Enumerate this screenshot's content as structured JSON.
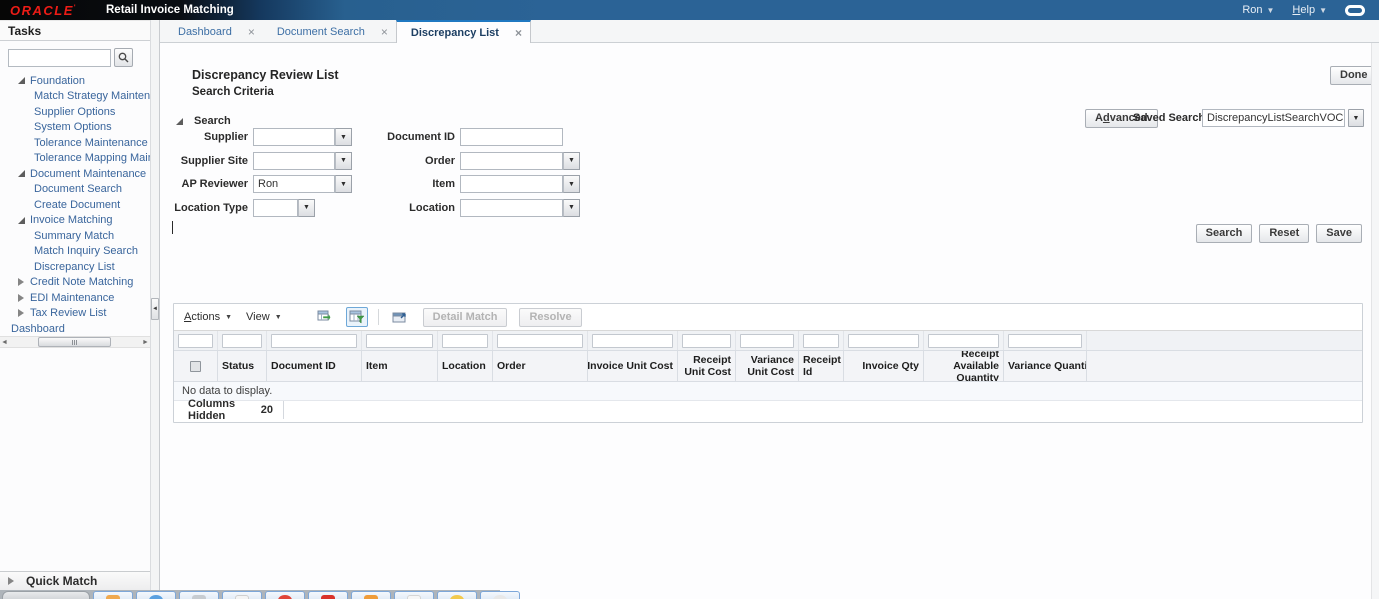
{
  "banner": {
    "logo": "ORACLE",
    "app_title": "Retail Invoice Matching",
    "user_menu": "Ron",
    "help_menu": {
      "text": "Help",
      "u": 0
    }
  },
  "tabs": [
    {
      "label": "Dashboard",
      "active": false
    },
    {
      "label": "Document Search",
      "active": false
    },
    {
      "label": "Discrepancy List",
      "active": true
    }
  ],
  "sidebar": {
    "title": "Tasks",
    "search_value": "",
    "tree": [
      {
        "label": "Foundation",
        "level": 1,
        "state": "expanded"
      },
      {
        "label": "Match Strategy Maintenance",
        "level": 2,
        "state": "leaf"
      },
      {
        "label": "Supplier Options",
        "level": 2,
        "state": "leaf"
      },
      {
        "label": "System Options",
        "level": 2,
        "state": "leaf"
      },
      {
        "label": "Tolerance Maintenance",
        "level": 2,
        "state": "leaf"
      },
      {
        "label": "Tolerance Mapping Maintenance",
        "level": 2,
        "state": "leaf"
      },
      {
        "label": "Document Maintenance",
        "level": 1,
        "state": "expanded"
      },
      {
        "label": "Document Search",
        "level": 2,
        "state": "leaf"
      },
      {
        "label": "Create Document",
        "level": 2,
        "state": "leaf"
      },
      {
        "label": "Invoice Matching",
        "level": 1,
        "state": "expanded"
      },
      {
        "label": "Summary Match",
        "level": 2,
        "state": "leaf"
      },
      {
        "label": "Match Inquiry Search",
        "level": 2,
        "state": "leaf"
      },
      {
        "label": "Discrepancy List",
        "level": 2,
        "state": "leaf"
      },
      {
        "label": "Credit Note Matching",
        "level": 1,
        "state": "collapsed"
      },
      {
        "label": "EDI Maintenance",
        "level": 1,
        "state": "collapsed"
      },
      {
        "label": "Tax Review List",
        "level": 1,
        "state": "collapsed"
      },
      {
        "label": "Dashboard",
        "level": 0,
        "state": "leaf"
      }
    ],
    "quick_match": "Quick Match"
  },
  "content": {
    "page_title": "Discrepancy Review List",
    "section_title": "Search Criteria",
    "done_button": "Done",
    "advanced_button": {
      "text": "Advanced",
      "u": 1
    },
    "saved_search_label": "Saved Search",
    "saved_search_value": "DiscrepancyListSearchVOCriteria",
    "search_group_title": "Search",
    "fields_left": [
      {
        "label": "Supplier",
        "kind": "combo",
        "value": "",
        "size": "normal"
      },
      {
        "label": "Supplier Site",
        "kind": "combo",
        "value": "",
        "size": "normal"
      },
      {
        "label": "AP Reviewer",
        "kind": "combo",
        "value": "Ron",
        "size": "normal"
      },
      {
        "label": "Location Type",
        "kind": "combo",
        "value": "",
        "size": "narrow"
      }
    ],
    "fields_right": [
      {
        "label": "Document ID",
        "kind": "text",
        "value": "",
        "size": "normal"
      },
      {
        "label": "Order",
        "kind": "combo",
        "value": "",
        "size": "normal"
      },
      {
        "label": "Item",
        "kind": "combo",
        "value": "",
        "size": "normal"
      },
      {
        "label": "Location",
        "kind": "combo",
        "value": "",
        "size": "normal"
      }
    ],
    "action_buttons": {
      "search": "Search",
      "reset": "Reset",
      "save": "Save"
    }
  },
  "table": {
    "toolbar": {
      "actions_menu": {
        "text": "Actions",
        "u": 0
      },
      "view_menu": "View",
      "icons": [
        "export-icon",
        "query-by-example-icon",
        "detach-icon"
      ],
      "detail_match_button": "Detail Match",
      "resolve_button": "Resolve"
    },
    "columns": [
      "",
      "Status",
      "Document ID",
      "Item",
      "Location",
      "Order",
      "Invoice Unit Cost",
      "Receipt Unit Cost",
      "Variance Unit Cost",
      "Receipt Id",
      "Invoice Qty",
      "Receipt Available Quantity",
      "Variance Quantity"
    ],
    "no_data_text": "No data to display.",
    "footer": {
      "label": "Columns Hidden",
      "value": "20"
    }
  },
  "taskbar": {
    "icons": [
      "start-orb",
      "folder-icon",
      "browser-icon",
      "window-icon",
      "document-icon",
      "media-icon",
      "alert-icon",
      "mail-icon",
      "notes-icon",
      "clock-icon",
      "app-icon"
    ]
  }
}
